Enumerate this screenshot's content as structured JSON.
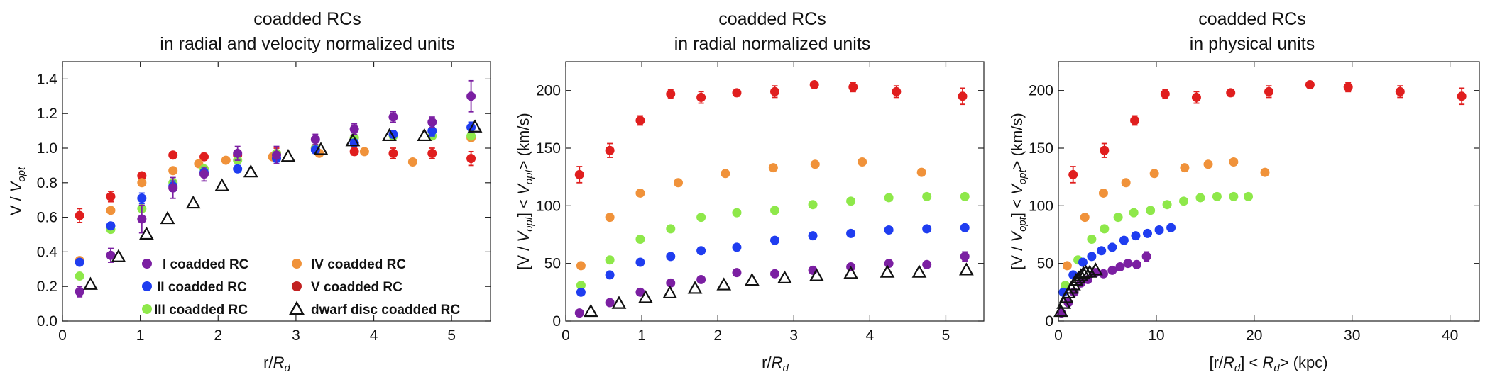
{
  "colors": {
    "I": "#7b1fa2",
    "II": "#1f3df0",
    "III": "#8ee84a",
    "IV": "#f0923a",
    "V": "#e01e1e",
    "dwarf": "#111111"
  },
  "chart_data": [
    {
      "type": "scatter",
      "title_line1": "coadded RCs",
      "title_line2": "in radial and velocity normalized units",
      "xlabel_pre": "r/",
      "xlabel_var": "R",
      "xlabel_sub": "d",
      "ylabel_pre": "V / ",
      "ylabel_var": "V",
      "ylabel_sub": "opt",
      "xlim": [
        0,
        5.5
      ],
      "ylim": [
        0,
        1.5
      ],
      "xticks": [
        0,
        1,
        2,
        3,
        4,
        5
      ],
      "yticks": [
        0.0,
        0.2,
        0.4,
        0.6,
        0.8,
        1.0,
        1.2,
        1.4
      ],
      "legend": {
        "position": "bottom-left",
        "col1": [
          {
            "key": "I",
            "label": "I coadded RC"
          },
          {
            "key": "II",
            "label": "II coadded RC"
          },
          {
            "key": "III",
            "label": "III coadded RC"
          }
        ],
        "col2": [
          {
            "key": "IV",
            "label": "IV  coadded RC"
          },
          {
            "key": "V",
            "label": "V  coadded RC"
          },
          {
            "key": "dwarf",
            "label": "dwarf disc coadded RC"
          }
        ]
      },
      "series": [
        {
          "key": "V",
          "name": "V coadded RC",
          "x": [
            0.22,
            0.62,
            1.02,
            1.42,
            1.82,
            2.25,
            2.75,
            3.25,
            3.75,
            4.25,
            4.75,
            5.25
          ],
          "y": [
            0.61,
            0.72,
            0.84,
            0.96,
            0.95,
            0.96,
            0.97,
            1.0,
            0.98,
            0.97,
            0.97,
            0.94
          ],
          "err": [
            0.04,
            0.03,
            0.02,
            0.01,
            0.02,
            0.02,
            0.03,
            0.02,
            0.02,
            0.03,
            0.03,
            0.04
          ]
        },
        {
          "key": "IV",
          "name": "IV coadded RC",
          "x": [
            0.22,
            0.62,
            1.02,
            1.42,
            1.75,
            2.1,
            2.7,
            3.3,
            3.88,
            4.5,
            5.25
          ],
          "y": [
            0.35,
            0.64,
            0.8,
            0.87,
            0.91,
            0.93,
            0.95,
            0.97,
            0.98,
            0.92,
            1.06
          ],
          "err": [
            0.01,
            0.01,
            0.01,
            0.01,
            0.01,
            0.01,
            0.01,
            0.01,
            0.01,
            0.01,
            0.02
          ]
        },
        {
          "key": "III",
          "name": "III coadded RC",
          "x": [
            0.22,
            0.62,
            1.02,
            1.42,
            1.82,
            2.25,
            2.75,
            3.25,
            3.75,
            4.25,
            4.75,
            5.25
          ],
          "y": [
            0.26,
            0.53,
            0.65,
            0.8,
            0.88,
            0.93,
            0.97,
            1.0,
            1.06,
            1.07,
            1.07,
            1.07
          ],
          "err": [
            0.01,
            0.01,
            0.01,
            0.01,
            0.01,
            0.01,
            0.01,
            0.01,
            0.01,
            0.01,
            0.01,
            0.01
          ]
        },
        {
          "key": "II",
          "name": "II coadded RC",
          "x": [
            0.22,
            0.62,
            1.02,
            1.42,
            1.82,
            2.25,
            2.75,
            3.25,
            3.75,
            4.25,
            4.75,
            5.25
          ],
          "y": [
            0.34,
            0.55,
            0.71,
            0.78,
            0.86,
            0.88,
            0.94,
            0.99,
            1.03,
            1.08,
            1.1,
            1.12
          ],
          "err": [
            0.01,
            0.02,
            0.03,
            0.03,
            0.02,
            0.02,
            0.02,
            0.02,
            0.02,
            0.02,
            0.03,
            0.03
          ]
        },
        {
          "key": "I",
          "name": "I coadded RC",
          "x": [
            0.22,
            0.62,
            1.02,
            1.42,
            1.82,
            2.25,
            2.75,
            3.25,
            3.75,
            4.25,
            4.75,
            5.25
          ],
          "y": [
            0.17,
            0.38,
            0.59,
            0.77,
            0.85,
            0.97,
            0.96,
            1.05,
            1.11,
            1.18,
            1.15,
            1.3
          ],
          "err": [
            0.03,
            0.04,
            0.08,
            0.06,
            0.04,
            0.04,
            0.05,
            0.03,
            0.03,
            0.03,
            0.03,
            0.09
          ]
        },
        {
          "key": "dwarf",
          "name": "dwarf disc coadded RC",
          "x": [
            0.36,
            0.72,
            1.08,
            1.35,
            1.68,
            2.05,
            2.42,
            2.9,
            3.32,
            3.73,
            4.2,
            4.65,
            5.3
          ],
          "y": [
            0.21,
            0.37,
            0.5,
            0.59,
            0.68,
            0.78,
            0.86,
            0.95,
            0.99,
            1.04,
            1.07,
            1.07,
            1.12
          ],
          "marker": "triangle"
        }
      ]
    },
    {
      "type": "scatter",
      "title_line1": "coadded RCs",
      "title_line2": "in radial normalized units",
      "xlabel_pre": "r/",
      "xlabel_var": "R",
      "xlabel_sub": "d",
      "ylabel_pre": "[V / ",
      "ylabel_var": "V",
      "ylabel_sub": "opt",
      "ylabel_mid": "] < ",
      "ylabel_var2": "V",
      "ylabel_sub2": "opt",
      "ylabel_post": "> (km/s)",
      "xlim": [
        0,
        5.5
      ],
      "ylim": [
        0,
        225
      ],
      "xticks": [
        0,
        1,
        2,
        3,
        4,
        5
      ],
      "yticks": [
        0,
        50,
        100,
        150,
        200
      ],
      "series": [
        {
          "key": "V",
          "name": "V coadded RC",
          "x": [
            0.18,
            0.58,
            0.98,
            1.38,
            1.78,
            2.25,
            2.75,
            3.27,
            3.78,
            4.35,
            5.22
          ],
          "y": [
            127,
            148,
            174,
            197,
            194,
            198,
            199,
            205,
            203,
            199,
            195
          ],
          "err": [
            7,
            6,
            4,
            4,
            5,
            3,
            5,
            2,
            4,
            5,
            7
          ]
        },
        {
          "key": "IV",
          "name": "IV coadded RC",
          "x": [
            0.2,
            0.58,
            0.98,
            1.48,
            2.1,
            2.73,
            3.28,
            3.9,
            4.68
          ],
          "y": [
            48,
            90,
            111,
            120,
            128,
            133,
            136,
            138,
            129
          ],
          "err": [
            1,
            1,
            1,
            1,
            1,
            1,
            1,
            1,
            1
          ]
        },
        {
          "key": "III",
          "name": "III coadded RC",
          "x": [
            0.2,
            0.58,
            0.98,
            1.38,
            1.78,
            2.25,
            2.75,
            3.25,
            3.75,
            4.25,
            4.75,
            5.25
          ],
          "y": [
            31,
            53,
            71,
            80,
            90,
            94,
            96,
            101,
            104,
            107,
            108,
            108
          ],
          "err": [
            1,
            1,
            1,
            1,
            1,
            1,
            1,
            1,
            1,
            1,
            1,
            1
          ]
        },
        {
          "key": "II",
          "name": "II coadded RC",
          "x": [
            0.2,
            0.58,
            0.98,
            1.38,
            1.78,
            2.25,
            2.75,
            3.25,
            3.75,
            4.25,
            4.75,
            5.25
          ],
          "y": [
            25,
            40,
            51,
            56,
            61,
            64,
            70,
            74,
            76,
            79,
            80,
            81
          ],
          "err": [
            1,
            1,
            1,
            1,
            1,
            1,
            1,
            1,
            1,
            1,
            1,
            1
          ]
        },
        {
          "key": "I",
          "name": "I coadded RC",
          "x": [
            0.18,
            0.58,
            0.98,
            1.38,
            1.78,
            2.25,
            2.75,
            3.25,
            3.75,
            4.25,
            4.75,
            5.25
          ],
          "y": [
            7,
            16,
            25,
            33,
            36,
            42,
            41,
            44,
            47,
            50,
            49,
            56
          ],
          "err": [
            1,
            1,
            1,
            1,
            1,
            1,
            1,
            1,
            1,
            1,
            1,
            4
          ]
        },
        {
          "key": "dwarf",
          "name": "dwarf disc coadded RC",
          "x": [
            0.33,
            0.7,
            1.05,
            1.37,
            1.7,
            2.08,
            2.45,
            2.88,
            3.3,
            3.75,
            4.23,
            4.65,
            5.27
          ],
          "y": [
            8,
            15,
            20,
            24,
            28,
            31,
            35,
            37,
            39,
            41,
            42,
            42,
            44
          ],
          "marker": "triangle"
        }
      ]
    },
    {
      "type": "scatter",
      "title_line1": "coadded RCs",
      "title_line2": "in physical units",
      "xlabel_pre": "[r/",
      "xlabel_var": "R",
      "xlabel_sub": "d",
      "xlabel_mid": "] < ",
      "xlabel_var2": "R",
      "xlabel_sub2": "d",
      "xlabel_post": "> (kpc)",
      "ylabel_pre": "[V / ",
      "ylabel_var": "V",
      "ylabel_sub": "opt",
      "ylabel_mid": "] < ",
      "ylabel_var2": "V",
      "ylabel_sub2": "opt",
      "ylabel_post": "> (km/s)",
      "xlim": [
        0,
        43
      ],
      "ylim": [
        0,
        225
      ],
      "xticks": [
        0,
        10,
        20,
        30,
        40
      ],
      "yticks": [
        0,
        50,
        100,
        150,
        200
      ],
      "series": [
        {
          "key": "V",
          "name": "V coadded RC",
          "x": [
            1.5,
            4.7,
            7.8,
            10.9,
            14.1,
            17.6,
            21.5,
            25.7,
            29.6,
            34.9,
            41.2
          ],
          "y": [
            127,
            148,
            174,
            197,
            194,
            198,
            199,
            205,
            203,
            199,
            195
          ],
          "err": [
            7,
            6,
            4,
            4,
            5,
            3,
            5,
            2,
            4,
            5,
            7
          ]
        },
        {
          "key": "IV",
          "name": "IV coadded RC",
          "x": [
            0.9,
            2.7,
            4.6,
            6.9,
            9.8,
            12.9,
            15.3,
            17.9,
            21.1
          ],
          "y": [
            48,
            90,
            111,
            120,
            128,
            133,
            136,
            138,
            129
          ],
          "err": [
            1,
            1,
            1,
            1,
            1,
            1,
            1,
            1,
            1
          ]
        },
        {
          "key": "III",
          "name": "III coadded RC",
          "x": [
            0.7,
            2.0,
            3.4,
            4.7,
            6.1,
            7.7,
            9.4,
            11.1,
            12.8,
            14.5,
            16.2,
            17.9,
            19.4
          ],
          "y": [
            31,
            53,
            71,
            80,
            90,
            94,
            96,
            101,
            104,
            107,
            108,
            108,
            108
          ],
          "err": [
            1,
            1,
            1,
            1,
            1,
            1,
            1,
            1,
            1,
            1,
            1,
            1,
            1
          ]
        },
        {
          "key": "II",
          "name": "II coadded RC",
          "x": [
            0.5,
            1.5,
            2.5,
            3.4,
            4.4,
            5.5,
            6.7,
            7.9,
            9.1,
            10.3,
            11.5
          ],
          "y": [
            25,
            40,
            51,
            56,
            61,
            64,
            70,
            74,
            76,
            79,
            81
          ],
          "err": [
            1,
            1,
            1,
            1,
            1,
            1,
            1,
            1,
            1,
            1,
            1
          ]
        },
        {
          "key": "I",
          "name": "I coadded RC",
          "x": [
            0.3,
            1.0,
            1.6,
            2.3,
            3.0,
            3.8,
            4.6,
            5.5,
            6.3,
            7.1,
            8.0,
            9.0
          ],
          "y": [
            7,
            16,
            25,
            33,
            36,
            42,
            41,
            44,
            47,
            50,
            49,
            56
          ],
          "err": [
            1,
            1,
            1,
            1,
            1,
            1,
            1,
            1,
            1,
            1,
            1,
            4
          ]
        },
        {
          "key": "dwarf",
          "name": "dwarf disc coadded RC",
          "x": [
            0.25,
            0.55,
            0.8,
            1.05,
            1.3,
            1.55,
            1.8,
            2.05,
            2.3,
            2.55,
            2.8,
            3.2,
            3.8
          ],
          "y": [
            8,
            15,
            20,
            24,
            28,
            31,
            35,
            37,
            39,
            41,
            42,
            42,
            44
          ],
          "marker": "triangle"
        }
      ]
    }
  ]
}
